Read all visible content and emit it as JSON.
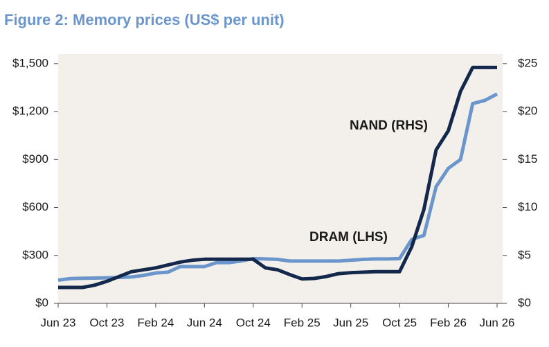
{
  "chart_data": {
    "type": "line",
    "title": "Figure 2: Memory prices (US$ per unit)",
    "categories": [
      "Jun 23",
      null,
      null,
      null,
      "Oct 23",
      null,
      null,
      null,
      "Feb 24",
      null,
      null,
      null,
      "Jun 24",
      null,
      null,
      null,
      "Oct 24",
      null,
      null,
      null,
      "Feb 25",
      null,
      null,
      null,
      "Jun 25",
      null,
      null,
      null,
      "Oct 25",
      null,
      null,
      null,
      "Feb 26",
      null,
      null,
      null,
      "Jun 26"
    ],
    "series": [
      {
        "name": "DRAM (LHS)",
        "color": "#6b96cc",
        "axis": "y",
        "values": [
          145,
          155,
          157,
          158,
          160,
          162,
          165,
          175,
          190,
          195,
          230,
          230,
          230,
          255,
          255,
          265,
          280,
          278,
          275,
          265,
          265,
          265,
          265,
          265,
          270,
          275,
          278,
          278,
          280,
          400,
          425,
          730,
          845,
          900,
          1250,
          1270,
          1310
        ]
      },
      {
        "name": "NAND (RHS)",
        "color": "#14284b",
        "axis": "y2",
        "values": [
          1.66,
          1.66,
          1.66,
          1.9,
          2.3,
          2.8,
          3.3,
          3.5,
          3.7,
          4.0,
          4.3,
          4.5,
          4.6,
          4.6,
          4.6,
          4.6,
          4.6,
          3.7,
          3.5,
          3.0,
          2.55,
          2.6,
          2.8,
          3.1,
          3.2,
          3.25,
          3.3,
          3.3,
          3.3,
          5.9,
          9.8,
          16,
          18,
          22.1,
          24.6,
          24.6,
          24.6
        ]
      }
    ],
    "ylim": [
      0,
      1560
    ],
    "yticks": [
      {
        "value": 0,
        "label": "$0"
      },
      {
        "value": 300,
        "label": "$300"
      },
      {
        "value": 600,
        "label": "$600"
      },
      {
        "value": 900,
        "label": "$900"
      },
      {
        "value": 1200,
        "label": "$1,200"
      },
      {
        "value": 1500,
        "label": "$1,500"
      }
    ],
    "y2lim": [
      0,
      26
    ],
    "y2ticks": [
      {
        "value": 0,
        "label": "$0"
      },
      {
        "value": 5,
        "label": "$5"
      },
      {
        "value": 10,
        "label": "$10"
      },
      {
        "value": 15,
        "label": "$15"
      },
      {
        "value": 20,
        "label": "$20"
      },
      {
        "value": 25,
        "label": "$25"
      }
    ],
    "grid": false,
    "background": "#f3f0eb"
  }
}
